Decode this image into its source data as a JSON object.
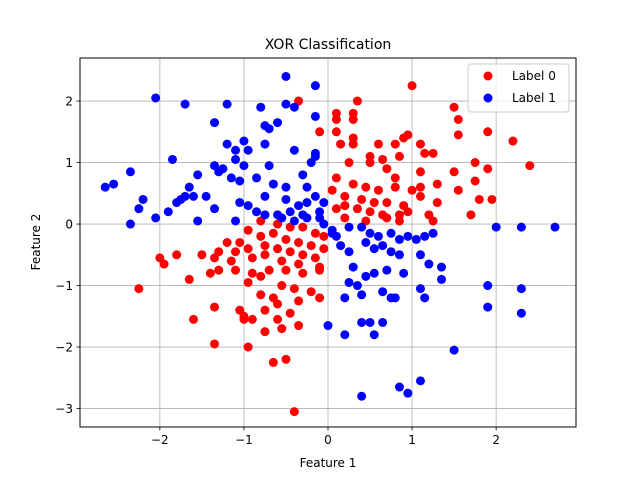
{
  "chart_data": {
    "type": "scatter",
    "title": "XOR Classification",
    "xlabel": "Feature 1",
    "ylabel": "Feature 2",
    "xlim": [
      -2.95,
      2.95
    ],
    "ylim": [
      -3.3,
      2.7
    ],
    "xticks": [
      -2,
      -1,
      0,
      1,
      2
    ],
    "yticks": [
      -3,
      -2,
      -1,
      0,
      1,
      2
    ],
    "grid": true,
    "legend_position": "top-right",
    "series": [
      {
        "name": "Label 0",
        "color": "#ff0000",
        "points": [
          [
            -0.35,
            2.0
          ],
          [
            0.35,
            2.0
          ],
          [
            1.0,
            2.25
          ],
          [
            1.5,
            1.9
          ],
          [
            1.55,
            1.7
          ],
          [
            1.55,
            1.45
          ],
          [
            0.3,
            1.8
          ],
          [
            0.1,
            1.8
          ],
          [
            0.3,
            1.7
          ],
          [
            0.1,
            1.7
          ],
          [
            -0.1,
            1.5
          ],
          [
            0.1,
            1.5
          ],
          [
            1.9,
            1.5
          ],
          [
            0.3,
            1.4
          ],
          [
            0.6,
            1.3
          ],
          [
            0.8,
            1.3
          ],
          [
            0.9,
            1.4
          ],
          [
            0.95,
            1.45
          ],
          [
            1.1,
            1.3
          ],
          [
            1.25,
            1.15
          ],
          [
            2.2,
            1.35
          ],
          [
            0.15,
            1.3
          ],
          [
            0.3,
            1.3
          ],
          [
            0.5,
            1.1
          ],
          [
            0.65,
            1.05
          ],
          [
            0.85,
            1.1
          ],
          [
            1.15,
            1.15
          ],
          [
            1.75,
            1.0
          ],
          [
            1.9,
            0.9
          ],
          [
            2.4,
            0.95
          ],
          [
            0.25,
            1.0
          ],
          [
            0.5,
            1.0
          ],
          [
            0.7,
            0.9
          ],
          [
            0.8,
            0.75
          ],
          [
            1.1,
            0.85
          ],
          [
            1.5,
            0.85
          ],
          [
            0.1,
            0.75
          ],
          [
            0.3,
            0.65
          ],
          [
            0.45,
            0.6
          ],
          [
            0.6,
            0.55
          ],
          [
            0.8,
            0.6
          ],
          [
            1.0,
            0.55
          ],
          [
            1.1,
            0.6
          ],
          [
            1.3,
            0.65
          ],
          [
            1.75,
            0.7
          ],
          [
            1.55,
            0.55
          ],
          [
            0.05,
            0.55
          ],
          [
            0.2,
            0.45
          ],
          [
            0.4,
            0.4
          ],
          [
            0.55,
            0.35
          ],
          [
            0.7,
            0.35
          ],
          [
            0.9,
            0.3
          ],
          [
            1.1,
            0.45
          ],
          [
            1.3,
            0.35
          ],
          [
            1.8,
            0.4
          ],
          [
            1.95,
            0.4
          ],
          [
            1.7,
            0.15
          ],
          [
            0.1,
            0.25
          ],
          [
            0.2,
            0.3
          ],
          [
            0.35,
            0.25
          ],
          [
            0.5,
            0.2
          ],
          [
            0.65,
            0.15
          ],
          [
            0.85,
            0.15
          ],
          [
            0.95,
            0.2
          ],
          [
            1.2,
            0.15
          ],
          [
            1.25,
            0.05
          ],
          [
            0.2,
            0.1
          ],
          [
            0.45,
            0.05
          ],
          [
            0.7,
            0.1
          ],
          [
            0.85,
            0.05
          ],
          [
            -0.8,
            0.05
          ],
          [
            -0.6,
            0.0
          ],
          [
            -0.45,
            -0.05
          ],
          [
            -0.3,
            -0.05
          ],
          [
            -0.15,
            -0.15
          ],
          [
            -0.05,
            -0.2
          ],
          [
            -0.95,
            -0.1
          ],
          [
            -1.05,
            -0.3
          ],
          [
            -0.8,
            -0.2
          ],
          [
            -0.65,
            -0.15
          ],
          [
            -0.5,
            -0.25
          ],
          [
            -0.35,
            -0.3
          ],
          [
            -0.2,
            -0.35
          ],
          [
            -0.05,
            -0.4
          ],
          [
            -1.2,
            -0.3
          ],
          [
            -1.3,
            -0.45
          ],
          [
            -1.1,
            -0.45
          ],
          [
            -0.95,
            -0.4
          ],
          [
            -0.75,
            -0.35
          ],
          [
            -0.6,
            -0.4
          ],
          [
            -0.45,
            -0.45
          ],
          [
            -0.3,
            -0.5
          ],
          [
            -0.15,
            -0.55
          ],
          [
            -1.5,
            -0.5
          ],
          [
            -1.35,
            -0.55
          ],
          [
            -1.15,
            -0.6
          ],
          [
            -0.9,
            -0.55
          ],
          [
            -0.75,
            -0.5
          ],
          [
            -0.55,
            -0.6
          ],
          [
            -0.35,
            -0.65
          ],
          [
            -0.1,
            -0.7
          ],
          [
            -2.0,
            -0.55
          ],
          [
            -1.8,
            -0.5
          ],
          [
            -1.95,
            -0.65
          ],
          [
            -1.3,
            -0.75
          ],
          [
            -1.1,
            -0.75
          ],
          [
            -0.9,
            -0.8
          ],
          [
            -0.7,
            -0.75
          ],
          [
            -0.5,
            -0.75
          ],
          [
            -0.3,
            -0.8
          ],
          [
            -0.1,
            -0.75
          ],
          [
            -1.65,
            -0.9
          ],
          [
            -1.4,
            -0.8
          ],
          [
            -0.95,
            -0.95
          ],
          [
            -0.8,
            -0.85
          ],
          [
            -0.55,
            -1.0
          ],
          [
            -0.4,
            -1.05
          ],
          [
            -0.2,
            -1.1
          ],
          [
            -2.25,
            -1.05
          ],
          [
            -0.8,
            -1.15
          ],
          [
            -0.65,
            -1.2
          ],
          [
            -0.35,
            -1.25
          ],
          [
            -0.1,
            -1.2
          ],
          [
            -0.6,
            -1.3
          ],
          [
            -0.45,
            -1.45
          ],
          [
            -0.75,
            -1.4
          ],
          [
            -1.35,
            -1.35
          ],
          [
            -1.05,
            -1.4
          ],
          [
            -1.0,
            -1.5
          ],
          [
            -0.9,
            -1.55
          ],
          [
            -0.6,
            -1.55
          ],
          [
            -0.35,
            -1.65
          ],
          [
            -0.55,
            -1.7
          ],
          [
            -0.75,
            -1.75
          ],
          [
            -1.6,
            -1.55
          ],
          [
            -1.35,
            -1.95
          ],
          [
            -1.0,
            -1.55
          ],
          [
            -0.95,
            -2.0
          ],
          [
            -0.65,
            -2.25
          ],
          [
            -0.5,
            -2.2
          ],
          [
            -0.4,
            -3.05
          ]
        ]
      },
      {
        "name": "Label 1",
        "color": "#0000ff",
        "points": [
          [
            -2.05,
            2.05
          ],
          [
            -0.5,
            2.4
          ],
          [
            -0.15,
            2.25
          ],
          [
            -1.7,
            1.95
          ],
          [
            -1.2,
            1.95
          ],
          [
            -0.8,
            1.9
          ],
          [
            -0.5,
            1.95
          ],
          [
            -0.4,
            1.9
          ],
          [
            -0.15,
            1.75
          ],
          [
            -1.35,
            1.65
          ],
          [
            -0.75,
            1.6
          ],
          [
            -0.7,
            1.55
          ],
          [
            -0.6,
            1.65
          ],
          [
            -1.2,
            1.3
          ],
          [
            -1.0,
            1.35
          ],
          [
            -1.1,
            1.2
          ],
          [
            -0.95,
            1.2
          ],
          [
            -0.75,
            1.3
          ],
          [
            -0.4,
            1.2
          ],
          [
            -0.15,
            1.15
          ],
          [
            -0.15,
            1.1
          ],
          [
            -1.85,
            1.05
          ],
          [
            -1.35,
            0.95
          ],
          [
            -1.25,
            0.9
          ],
          [
            -1.1,
            1.05
          ],
          [
            -1.0,
            0.95
          ],
          [
            -0.7,
            0.95
          ],
          [
            -0.3,
            0.8
          ],
          [
            -0.2,
            1.0
          ],
          [
            -1.55,
            0.8
          ],
          [
            -1.3,
            0.85
          ],
          [
            -1.15,
            0.75
          ],
          [
            -1.05,
            0.7
          ],
          [
            -0.85,
            0.75
          ],
          [
            -0.65,
            0.65
          ],
          [
            -0.5,
            0.6
          ],
          [
            -0.25,
            0.6
          ],
          [
            -2.65,
            0.6
          ],
          [
            -2.55,
            0.65
          ],
          [
            -2.35,
            0.85
          ],
          [
            -1.65,
            0.6
          ],
          [
            -1.7,
            0.45
          ],
          [
            -1.75,
            0.4
          ],
          [
            -1.6,
            0.45
          ],
          [
            -1.45,
            0.45
          ],
          [
            -1.05,
            0.35
          ],
          [
            -0.95,
            0.3
          ],
          [
            -0.75,
            0.45
          ],
          [
            -0.5,
            0.4
          ],
          [
            -0.35,
            0.3
          ],
          [
            -0.25,
            0.35
          ],
          [
            -0.15,
            0.45
          ],
          [
            -0.05,
            0.35
          ],
          [
            -2.2,
            0.4
          ],
          [
            -2.25,
            0.25
          ],
          [
            -1.8,
            0.35
          ],
          [
            -1.35,
            0.25
          ],
          [
            -0.85,
            0.2
          ],
          [
            -0.6,
            0.15
          ],
          [
            -0.45,
            0.2
          ],
          [
            -0.3,
            0.15
          ],
          [
            -0.1,
            0.2
          ],
          [
            -2.05,
            0.1
          ],
          [
            -1.9,
            0.2
          ],
          [
            -1.55,
            0.05
          ],
          [
            -1.1,
            0.05
          ],
          [
            -0.75,
            0.15
          ],
          [
            -0.55,
            0.1
          ],
          [
            -0.4,
            0.05
          ],
          [
            -0.25,
            0.1
          ],
          [
            -0.1,
            0.1
          ],
          [
            -2.35,
            0.0
          ],
          [
            -0.05,
            0.0
          ],
          [
            0.05,
            -0.1
          ],
          [
            0.1,
            -0.2
          ],
          [
            0.05,
            -0.15
          ],
          [
            0.25,
            -0.05
          ],
          [
            0.4,
            -0.05
          ],
          [
            0.5,
            -0.15
          ],
          [
            0.6,
            -0.2
          ],
          [
            0.75,
            -0.15
          ],
          [
            0.85,
            -0.25
          ],
          [
            0.95,
            -0.2
          ],
          [
            1.05,
            -0.25
          ],
          [
            1.15,
            -0.2
          ],
          [
            1.25,
            -0.15
          ],
          [
            2.0,
            -0.05
          ],
          [
            2.3,
            -0.05
          ],
          [
            2.7,
            -0.05
          ],
          [
            0.15,
            -0.35
          ],
          [
            0.25,
            -0.45
          ],
          [
            0.45,
            -0.3
          ],
          [
            0.55,
            -0.4
          ],
          [
            0.65,
            -0.35
          ],
          [
            0.75,
            -0.45
          ],
          [
            0.85,
            -0.5
          ],
          [
            1.1,
            -0.5
          ],
          [
            1.2,
            -0.65
          ],
          [
            1.35,
            -0.7
          ],
          [
            0.3,
            -0.7
          ],
          [
            0.45,
            -0.85
          ],
          [
            0.25,
            -0.95
          ],
          [
            0.35,
            -1.0
          ],
          [
            0.55,
            -0.8
          ],
          [
            0.7,
            -0.75
          ],
          [
            0.9,
            -0.8
          ],
          [
            1.1,
            -1.05
          ],
          [
            1.35,
            -0.9
          ],
          [
            1.9,
            -1.0
          ],
          [
            0.2,
            -1.2
          ],
          [
            0.4,
            -1.15
          ],
          [
            0.65,
            -1.1
          ],
          [
            0.75,
            -1.2
          ],
          [
            0.8,
            -1.2
          ],
          [
            1.15,
            -1.2
          ],
          [
            0.0,
            -1.65
          ],
          [
            0.2,
            -1.8
          ],
          [
            0.4,
            -1.6
          ],
          [
            0.5,
            -1.6
          ],
          [
            0.65,
            -1.6
          ],
          [
            0.55,
            -1.8
          ],
          [
            1.5,
            -2.05
          ],
          [
            1.9,
            -1.35
          ],
          [
            2.3,
            -1.05
          ],
          [
            2.3,
            -1.45
          ],
          [
            0.4,
            -2.8
          ],
          [
            0.85,
            -2.65
          ],
          [
            0.95,
            -2.75
          ],
          [
            1.1,
            -2.55
          ]
        ]
      }
    ]
  }
}
